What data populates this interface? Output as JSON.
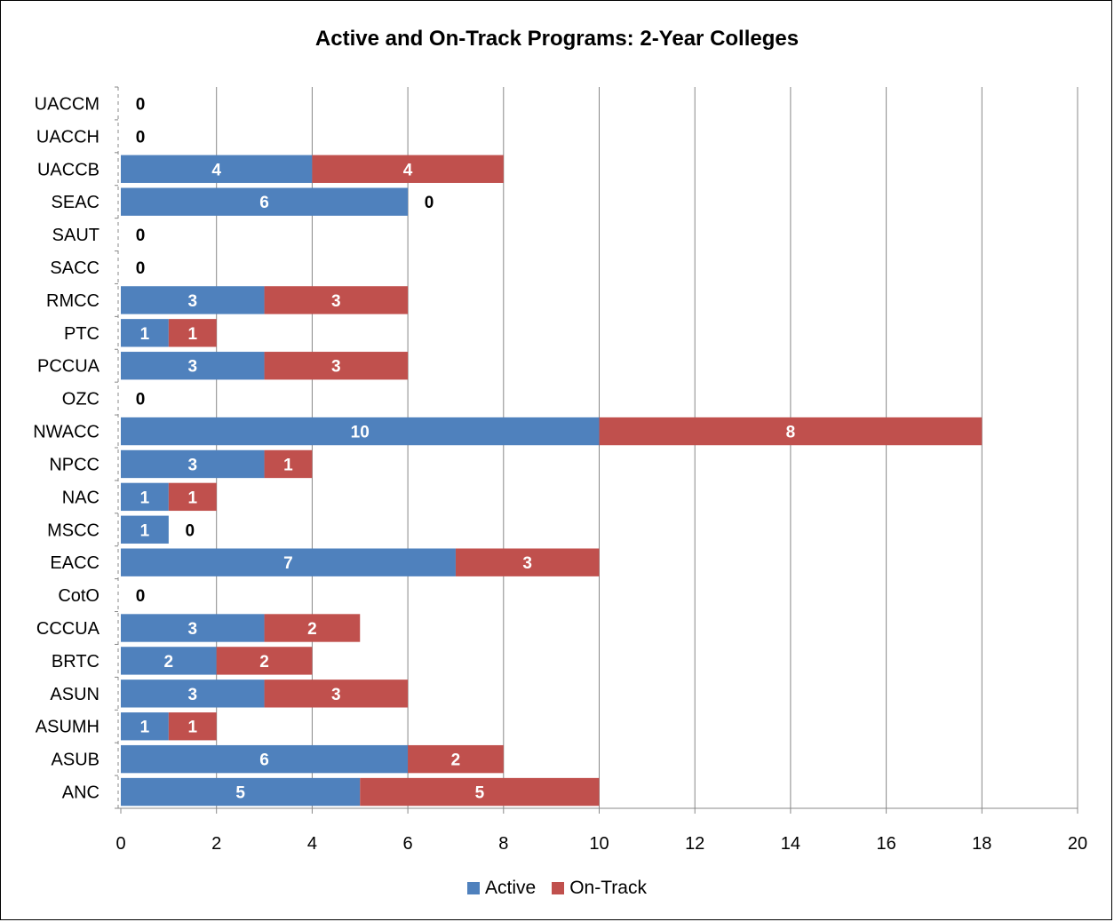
{
  "chart_data": {
    "type": "bar",
    "orientation": "horizontal",
    "stacked": true,
    "title": "Active and On-Track Programs: 2-Year Colleges",
    "categories": [
      "UACCM",
      "UACCH",
      "UACCB",
      "SEAC",
      "SAUT",
      "SACC",
      "RMCC",
      "PTC",
      "PCCUA",
      "OZC",
      "NWACC",
      "NPCC",
      "NAC",
      "MSCC",
      "EACC",
      "CotO",
      "CCCUA",
      "BRTC",
      "ASUN",
      "ASUMH",
      "ASUB",
      "ANC"
    ],
    "series": [
      {
        "name": "Active",
        "color": "#4F81BD",
        "values": [
          0,
          0,
          4,
          6,
          0,
          0,
          3,
          1,
          3,
          0,
          10,
          3,
          1,
          1,
          7,
          0,
          3,
          2,
          3,
          1,
          6,
          5
        ]
      },
      {
        "name": "On-Track",
        "color": "#C0504D",
        "values": [
          0,
          0,
          4,
          0,
          0,
          0,
          3,
          1,
          3,
          0,
          8,
          1,
          1,
          0,
          3,
          0,
          2,
          2,
          3,
          1,
          2,
          5
        ]
      }
    ],
    "xlim": [
      0,
      20
    ],
    "xticks": [
      "0",
      "2",
      "4",
      "6",
      "8",
      "10",
      "12",
      "14",
      "16",
      "18",
      "20"
    ],
    "grid": true,
    "legend": "bottom"
  }
}
